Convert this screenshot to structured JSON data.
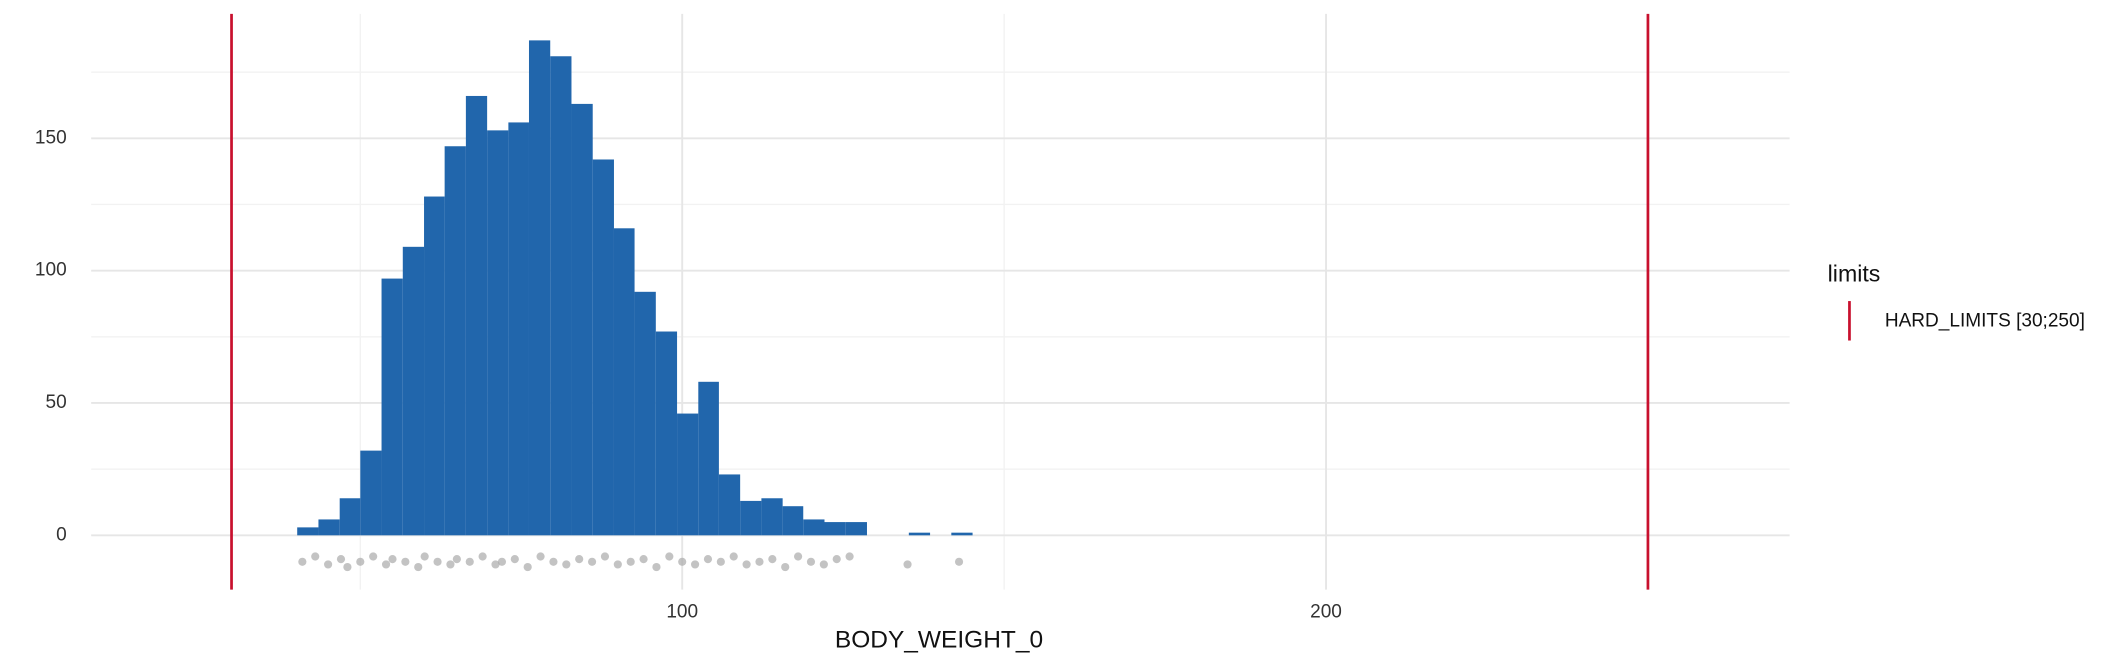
{
  "chart_data": {
    "type": "histogram",
    "x_label": "BODY_WEIGHT_0",
    "bins": [
      40.2,
      43.5,
      46.8,
      50.0,
      53.3,
      56.6,
      59.9,
      63.1,
      66.4,
      69.7,
      73.0,
      76.2,
      79.5,
      82.8,
      86.1,
      89.4,
      92.6,
      95.9,
      99.2,
      102.5,
      105.7,
      109.0,
      112.3,
      115.6,
      118.8,
      122.1,
      125.4,
      128.7,
      131.9,
      135.2,
      138.5,
      141.8,
      145.1
    ],
    "values": [
      3,
      6,
      14,
      32,
      97,
      109,
      128,
      147,
      166,
      153,
      156,
      187,
      181,
      163,
      142,
      116,
      92,
      77,
      46,
      58,
      23,
      13,
      14,
      11,
      6,
      5,
      5,
      0,
      0,
      1,
      0,
      1
    ],
    "color": "#2166ac",
    "points": {
      "color": "#aaaaaa",
      "x": [
        41,
        43,
        45,
        47,
        48,
        50,
        52,
        54,
        55,
        57,
        59,
        60,
        62,
        64,
        65,
        67,
        69,
        71,
        72,
        74,
        76,
        78,
        80,
        82,
        84,
        86,
        88,
        90,
        92,
        94,
        96,
        98,
        100,
        102,
        104,
        106,
        108,
        110,
        112,
        114,
        116,
        118,
        120,
        122,
        124,
        126,
        135,
        143
      ],
      "y": [
        -10,
        -8,
        -11,
        -9,
        -12,
        -10,
        -8,
        -11,
        -9,
        -10,
        -12,
        -8,
        -10,
        -11,
        -9,
        -10,
        -8,
        -11,
        -10,
        -9,
        -12,
        -8,
        -10,
        -11,
        -9,
        -10,
        -8,
        -11,
        -10,
        -9,
        -12,
        -8,
        -10,
        -11,
        -9,
        -10,
        -8,
        -11,
        -10,
        -9,
        -12,
        -8,
        -10,
        -11,
        -9,
        -8,
        -11,
        -10
      ]
    },
    "limits": {
      "legend_title": "limits",
      "name": "HARD_LIMITS [30;250]",
      "color": "#c8102e",
      "values": [
        30,
        250
      ]
    },
    "xlim": [
      8.2,
      272
    ],
    "xticks": [
      100,
      200
    ],
    "x_minor_ticks": [
      50,
      150,
      250
    ],
    "ylim": [
      -20.5,
      197
    ],
    "yticks": [
      0,
      50,
      100,
      150
    ],
    "y_minor_ticks": [
      25,
      75,
      125,
      175
    ],
    "grid": true
  }
}
